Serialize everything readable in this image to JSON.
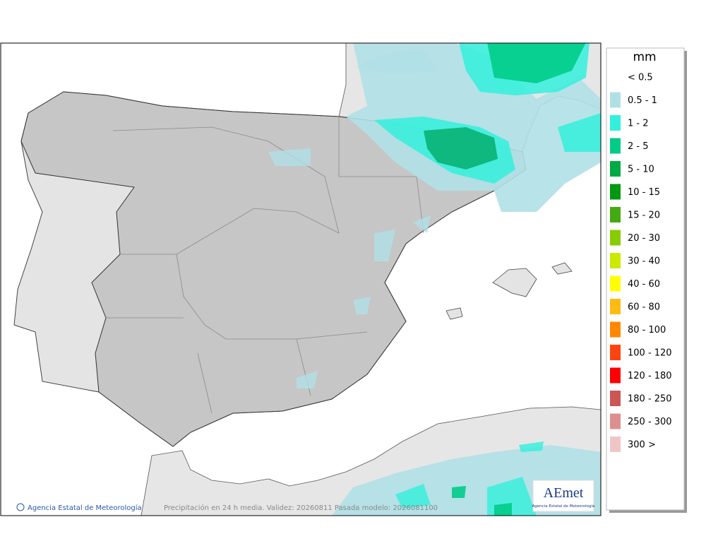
{
  "legend": {
    "title": "mm",
    "items": [
      {
        "label": "< 0.5",
        "color": "#ffffff"
      },
      {
        "label": "0.5 - 1",
        "color": "#b0e0e6"
      },
      {
        "label": "1 - 2",
        "color": "#33f0dc"
      },
      {
        "label": "2 - 5",
        "color": "#00cc88"
      },
      {
        "label": "5 - 10",
        "color": "#00aa44"
      },
      {
        "label": "10 - 15",
        "color": "#009911"
      },
      {
        "label": "15 - 20",
        "color": "#44aa11"
      },
      {
        "label": "20 - 30",
        "color": "#88cc00"
      },
      {
        "label": "30 - 40",
        "color": "#ccea00"
      },
      {
        "label": "40 - 60",
        "color": "#ffff00"
      },
      {
        "label": "60 - 80",
        "color": "#ffbb11"
      },
      {
        "label": "80 - 100",
        "color": "#ff8800"
      },
      {
        "label": "100 - 120",
        "color": "#ff4411"
      },
      {
        "label": "120 - 180",
        "color": "#ff0000"
      },
      {
        "label": "180 - 250",
        "color": "#cc5555"
      },
      {
        "label": "250 - 300",
        "color": "#dd8f8f"
      },
      {
        "label": "300 >",
        "color": "#efc6c6"
      }
    ]
  },
  "footer": {
    "credit": "Agencia Estatal de Meteorología",
    "caption": "Precipitación en 24 h media. Validez: 20260811 Pasada modelo: 2026081100"
  },
  "logo": {
    "name": "AEmet",
    "subtitle": "Agencia Estatal de Meteorología"
  }
}
